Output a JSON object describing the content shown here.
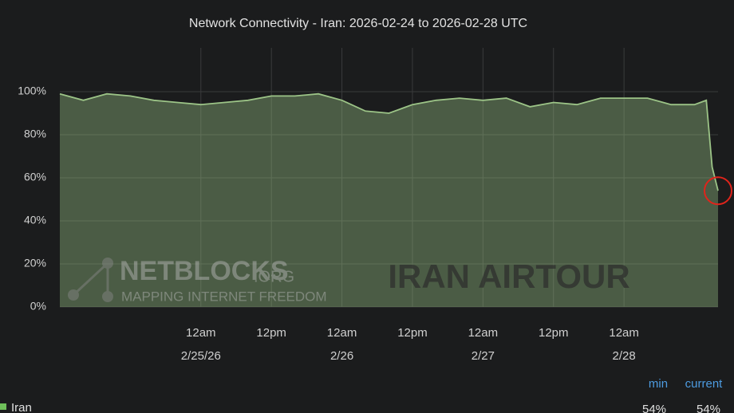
{
  "chart_data": {
    "type": "area",
    "title": "Network Connectivity - Iran: 2026-02-24 to 2026-02-28 UTC",
    "x": [
      "2026-02-24T00:00",
      "2026-02-24T04:00",
      "2026-02-24T08:00",
      "2026-02-24T12:00",
      "2026-02-24T16:00",
      "2026-02-24T20:00",
      "2026-02-25T00:00",
      "2026-02-25T04:00",
      "2026-02-25T08:00",
      "2026-02-25T12:00",
      "2026-02-25T16:00",
      "2026-02-25T20:00",
      "2026-02-26T00:00",
      "2026-02-26T04:00",
      "2026-02-26T08:00",
      "2026-02-26T12:00",
      "2026-02-26T16:00",
      "2026-02-26T20:00",
      "2026-02-27T00:00",
      "2026-02-27T04:00",
      "2026-02-27T08:00",
      "2026-02-27T12:00",
      "2026-02-27T16:00",
      "2026-02-27T20:00",
      "2026-02-28T00:00",
      "2026-02-28T04:00",
      "2026-02-28T08:00",
      "2026-02-28T12:00",
      "2026-02-28T14:00",
      "2026-02-28T15:00",
      "2026-02-28T16:00"
    ],
    "series": [
      {
        "name": "Iran",
        "color": "#9cc487",
        "values": [
          99,
          96,
          99,
          98,
          96,
          95,
          94,
          95,
          96,
          98,
          98,
          99,
          96,
          91,
          90,
          94,
          96,
          97,
          96,
          97,
          93,
          95,
          94,
          97,
          97,
          97,
          94,
          94,
          96,
          65,
          54
        ]
      }
    ],
    "xlim": [
      "2026-02-24T00:00",
      "2026-02-28T16:00"
    ],
    "xticks": [
      {
        "value": "2026-02-25T00:00",
        "label": "12am",
        "date": "2/25/26"
      },
      {
        "value": "2026-02-25T12:00",
        "label": "12pm"
      },
      {
        "value": "2026-02-26T00:00",
        "label": "12am",
        "date": "2/26"
      },
      {
        "value": "2026-02-26T12:00",
        "label": "12pm"
      },
      {
        "value": "2026-02-27T00:00",
        "label": "12am",
        "date": "2/27"
      },
      {
        "value": "2026-02-27T12:00",
        "label": "12pm"
      },
      {
        "value": "2026-02-28T00:00",
        "label": "12am",
        "date": "2/28"
      }
    ],
    "ylim": [
      0,
      100
    ],
    "yticks": [
      {
        "value": 0,
        "label": "0%"
      },
      {
        "value": 20,
        "label": "20%"
      },
      {
        "value": 40,
        "label": "40%"
      },
      {
        "value": 60,
        "label": "60%"
      },
      {
        "value": 80,
        "label": "80%"
      },
      {
        "value": 100,
        "label": "100%"
      }
    ],
    "grid": true,
    "stats": {
      "labels": [
        "min",
        "current"
      ],
      "values": [
        54,
        54
      ],
      "value_labels": [
        "54%",
        "54%"
      ]
    },
    "watermarks": [
      "NETBLOCKS",
      ".ORG",
      "MAPPING INTERNET FREEDOM",
      "IRAN AIRTOUR"
    ]
  }
}
